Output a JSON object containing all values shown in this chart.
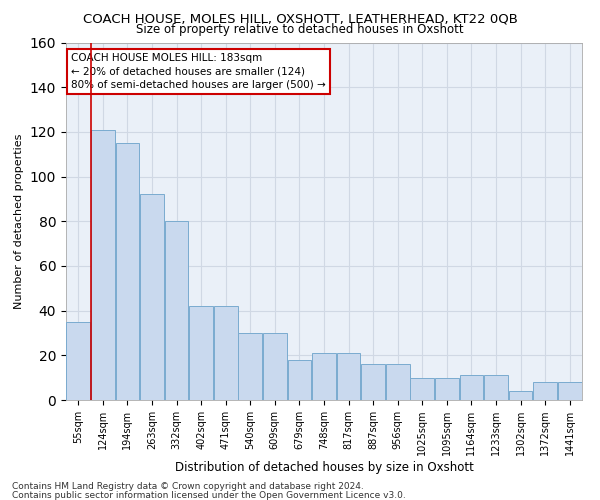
{
  "title": "COACH HOUSE, MOLES HILL, OXSHOTT, LEATHERHEAD, KT22 0QB",
  "subtitle": "Size of property relative to detached houses in Oxshott",
  "xlabel": "Distribution of detached houses by size in Oxshott",
  "ylabel": "Number of detached properties",
  "bar_labels": [
    "55sqm",
    "124sqm",
    "194sqm",
    "263sqm",
    "332sqm",
    "402sqm",
    "471sqm",
    "540sqm",
    "609sqm",
    "679sqm",
    "748sqm",
    "817sqm",
    "887sqm",
    "956sqm",
    "1025sqm",
    "1095sqm",
    "1164sqm",
    "1233sqm",
    "1302sqm",
    "1372sqm",
    "1441sqm"
  ],
  "bar_values": [
    35,
    121,
    115,
    92,
    80,
    42,
    42,
    30,
    30,
    18,
    21,
    21,
    16,
    16,
    10,
    10,
    11,
    11,
    4,
    8,
    8
  ],
  "bar_color": "#c9d9ee",
  "bar_edge_color": "#7aabcf",
  "vline_x": 0.5,
  "vline_color": "#cc0000",
  "ylim": [
    0,
    160
  ],
  "yticks": [
    0,
    20,
    40,
    60,
    80,
    100,
    120,
    140,
    160
  ],
  "annotation_text": "COACH HOUSE MOLES HILL: 183sqm\n← 20% of detached houses are smaller (124)\n80% of semi-detached houses are larger (500) →",
  "annotation_box_color": "#ffffff",
  "annotation_box_edge": "#cc0000",
  "footnote1": "Contains HM Land Registry data © Crown copyright and database right 2024.",
  "footnote2": "Contains public sector information licensed under the Open Government Licence v3.0.",
  "bg_color": "#eaf0f8",
  "grid_color": "#d0d8e4",
  "title_fontsize": 9.5,
  "subtitle_fontsize": 8.5,
  "xlabel_fontsize": 8.5,
  "ylabel_fontsize": 8.0,
  "tick_fontsize": 7.0
}
